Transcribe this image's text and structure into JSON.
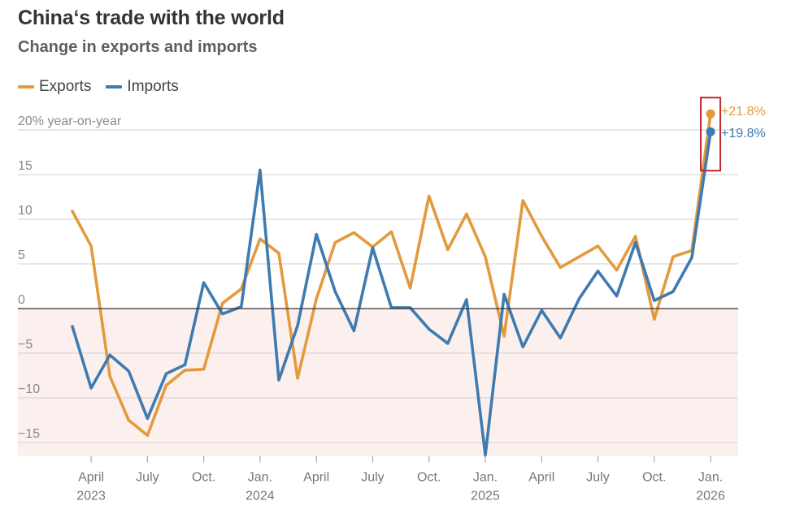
{
  "chart_data": {
    "type": "line",
    "title": "China‘s trade with the world",
    "subtitle": "Change in exports and imports",
    "ylabel": "20% year-on-year",
    "ylim": [
      -16.5,
      21
    ],
    "yticks": [
      -15,
      -10,
      -5,
      0,
      5,
      10,
      15,
      20
    ],
    "ytick_labels": [
      "−15",
      "−10",
      "−5",
      "0",
      "5",
      "10",
      "15",
      "20% year-on-year"
    ],
    "x": [
      "2023-03",
      "2023-04",
      "2023-05",
      "2023-06",
      "2023-07",
      "2023-08",
      "2023-09",
      "2023-10",
      "2023-11",
      "2023-12",
      "2024-01",
      "2024-02",
      "2024-03",
      "2024-04",
      "2024-05",
      "2024-06",
      "2024-07",
      "2024-08",
      "2024-09",
      "2024-10",
      "2024-11",
      "2024-12",
      "2025-01",
      "2025-02",
      "2025-03",
      "2025-04",
      "2025-05",
      "2025-06",
      "2025-07",
      "2025-08",
      "2025-09",
      "2025-10",
      "2025-11",
      "2025-12",
      "2026-01"
    ],
    "xticks": [
      {
        "month": "2023-04",
        "label": "April",
        "year": "2023"
      },
      {
        "month": "2023-07",
        "label": "July",
        "year": ""
      },
      {
        "month": "2023-10",
        "label": "Oct.",
        "year": ""
      },
      {
        "month": "2024-01",
        "label": "Jan.",
        "year": "2024"
      },
      {
        "month": "2024-04",
        "label": "April",
        "year": ""
      },
      {
        "month": "2024-07",
        "label": "July",
        "year": ""
      },
      {
        "month": "2024-10",
        "label": "Oct.",
        "year": ""
      },
      {
        "month": "2025-01",
        "label": "Jan.",
        "year": "2025"
      },
      {
        "month": "2025-04",
        "label": "April",
        "year": ""
      },
      {
        "month": "2025-07",
        "label": "July",
        "year": ""
      },
      {
        "month": "2025-10",
        "label": "Oct.",
        "year": ""
      },
      {
        "month": "2026-01",
        "label": "Jan.",
        "year": "2026"
      }
    ],
    "series": [
      {
        "name": "Exports",
        "color": "#e39a3c",
        "values": [
          10.9,
          7.0,
          -7.6,
          -12.5,
          -14.2,
          -8.6,
          -6.9,
          -6.8,
          0.6,
          2.2,
          7.8,
          6.2,
          -7.8,
          1.1,
          7.4,
          8.5,
          6.9,
          8.6,
          2.3,
          12.6,
          6.6,
          10.6,
          5.8,
          -3.1,
          12.1,
          8.1,
          4.6,
          5.8,
          7.0,
          4.3,
          8.1,
          -1.2,
          5.8,
          6.5,
          21.8
        ]
      },
      {
        "name": "Imports",
        "color": "#3f7bb0",
        "values": [
          -2.0,
          -8.9,
          -5.2,
          -7.0,
          -12.3,
          -7.3,
          -6.3,
          2.9,
          -0.6,
          0.2,
          15.5,
          -8.0,
          -1.9,
          8.3,
          1.9,
          -2.5,
          6.8,
          0.1,
          0.1,
          -2.3,
          -3.9,
          1.0,
          -16.4,
          1.6,
          -4.3,
          -0.2,
          -3.3,
          1.1,
          4.2,
          1.4,
          7.4,
          0.9,
          1.9,
          5.7,
          19.8
        ]
      }
    ],
    "annotations": {
      "exports_label": "+21.8%",
      "imports_label": "+19.8%",
      "highlight_box_color": "#c0272d"
    },
    "negative_region_color": "#fcf0ee",
    "grid": true,
    "legend": "top-left"
  }
}
